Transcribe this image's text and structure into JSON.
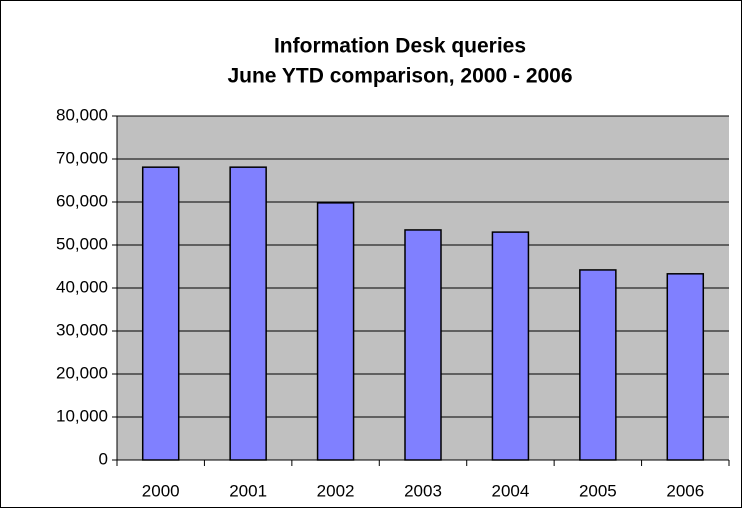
{
  "chart_data": {
    "type": "bar",
    "title": "Information Desk queries",
    "subtitle": "June YTD comparison, 2000 - 2006",
    "categories": [
      "2000",
      "2001",
      "2002",
      "2003",
      "2004",
      "2005",
      "2006"
    ],
    "values": [
      68100,
      68100,
      59800,
      53500,
      53000,
      44200,
      43300
    ],
    "color": "#8080ff",
    "ylim": [
      0,
      80000
    ],
    "yticks": [
      0,
      {
        "value": 10000,
        "label": "10,000"
      },
      {
        "value": 20000,
        "label": "20,000"
      },
      {
        "value": 30000,
        "label": "30,000"
      },
      {
        "value": 40000,
        "label": "40,000"
      },
      {
        "value": 50000,
        "label": "50,000"
      },
      {
        "value": 60000,
        "label": "60,000"
      },
      {
        "value": 70000,
        "label": "70,000"
      },
      {
        "value": 80000,
        "label": "80,000"
      }
    ],
    "grid": true
  }
}
